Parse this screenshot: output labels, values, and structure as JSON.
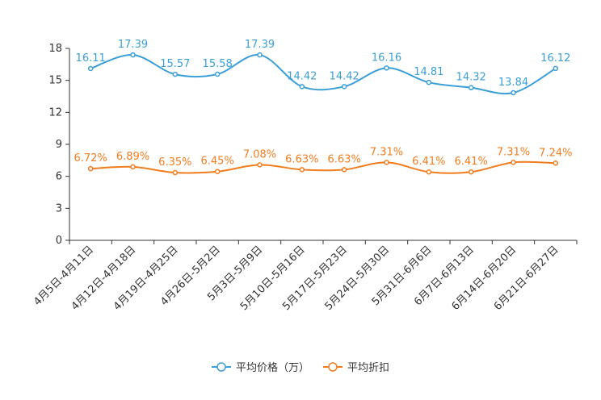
{
  "chart_data": {
    "type": "line",
    "categories": [
      "4月5日-4月11日",
      "4月12日-4月18日",
      "4月19日-4月25日",
      "4月26日-5月2日",
      "5月3日-5月9日",
      "5月10日-5月16日",
      "5月17日-5月23日",
      "5月24日-5月30日",
      "5月31日-6月6日",
      "6月7日-6月13日",
      "6月14日-6月20日",
      "6月21日-6月27日"
    ],
    "ylim": [
      0,
      18
    ],
    "yticks": [
      0,
      3,
      6,
      9,
      12,
      15,
      18
    ],
    "series": [
      {
        "name": "平均价格（万）",
        "color": "#3a9fd6",
        "values": [
          16.11,
          17.39,
          15.57,
          15.58,
          17.39,
          14.42,
          14.42,
          16.16,
          14.81,
          14.32,
          13.84,
          16.12
        ],
        "labels": [
          "16.11",
          "17.39",
          "15.57",
          "15.58",
          "17.39",
          "14.42",
          "14.42",
          "16.16",
          "14.81",
          "14.32",
          "13.84",
          "16.12"
        ]
      },
      {
        "name": "平均折扣",
        "color": "#f07d1e",
        "values": [
          6.72,
          6.89,
          6.35,
          6.45,
          7.08,
          6.63,
          6.63,
          7.31,
          6.41,
          6.41,
          7.31,
          7.24
        ],
        "labels": [
          "6.72%",
          "6.89%",
          "6.35%",
          "6.45%",
          "7.08%",
          "6.63%",
          "6.63%",
          "7.31%",
          "6.41%",
          "6.41%",
          "7.31%",
          "7.24%"
        ]
      }
    ],
    "legend": "bottom"
  }
}
